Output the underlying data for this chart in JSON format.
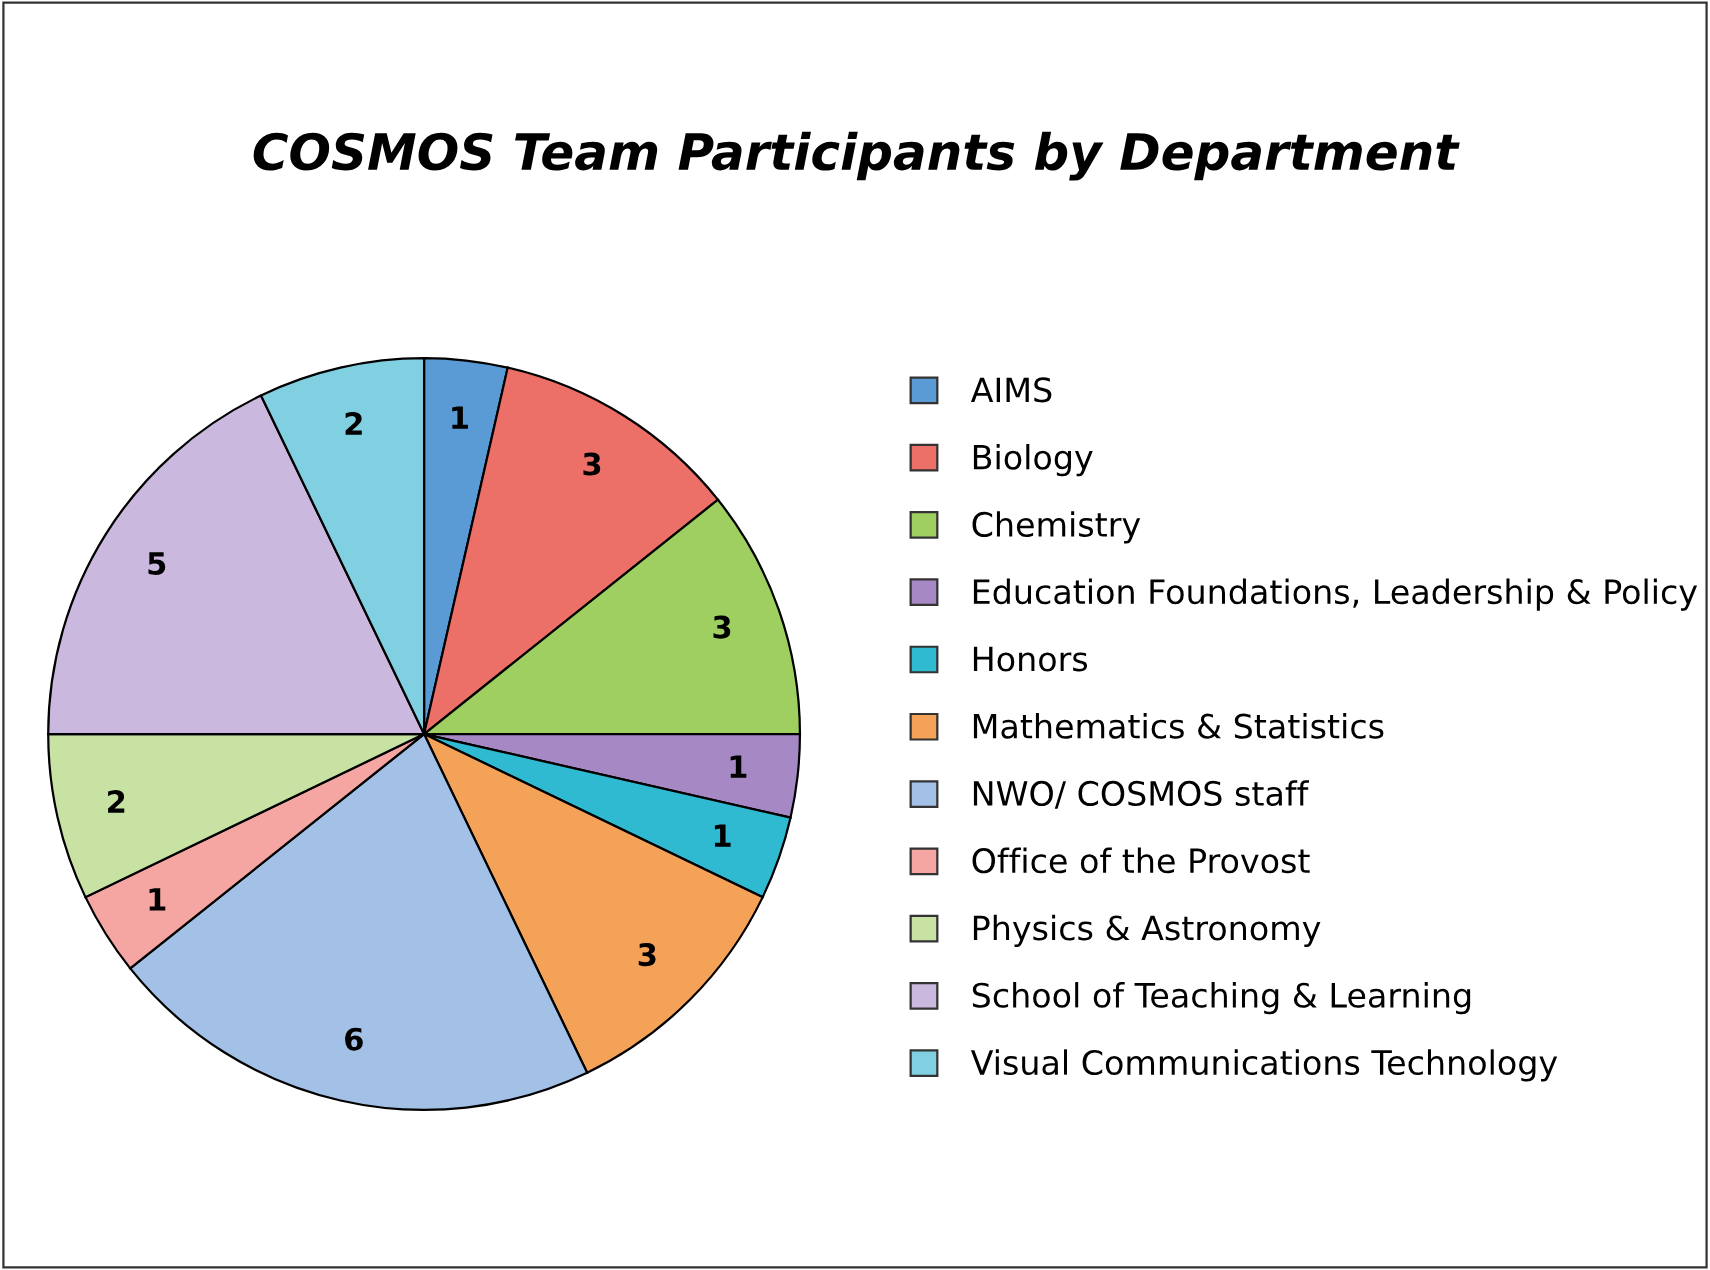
{
  "chart_data": {
    "type": "pie",
    "title": "COSMOS Team Participants by Department",
    "categories": [
      "AIMS",
      "Biology",
      "Chemistry",
      "Education Foundations, Leadership & Policy",
      "Honors",
      "Mathematics & Statistics",
      "NWO/ COSMOS staff",
      "Office of the Provost",
      "Physics & Astronomy",
      "School of Teaching & Learning",
      "Visual Communications Technology"
    ],
    "values": [
      1,
      3,
      3,
      1,
      1,
      3,
      6,
      1,
      2,
      5,
      2
    ],
    "colors": [
      "#5b9bd5",
      "#ec6f68",
      "#9fcf60",
      "#a689c4",
      "#2fbad2",
      "#f5a259",
      "#a3c0e6",
      "#f5a5a2",
      "#c8e2a4",
      "#cbb8de",
      "#80d0e2"
    ],
    "data_labels": true,
    "legend": "right"
  }
}
